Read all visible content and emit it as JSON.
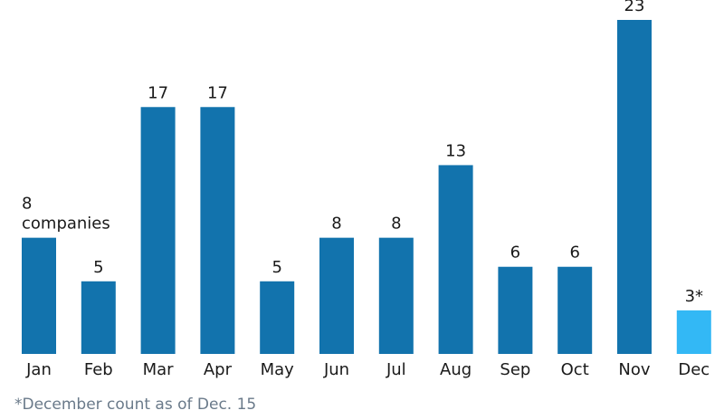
{
  "chart_data": {
    "type": "bar",
    "categories": [
      "Jan",
      "Feb",
      "Mar",
      "Apr",
      "May",
      "Jun",
      "Jul",
      "Aug",
      "Sep",
      "Oct",
      "Nov",
      "Dec"
    ],
    "values": [
      8,
      5,
      17,
      17,
      5,
      8,
      8,
      13,
      6,
      6,
      23,
      3
    ],
    "data_labels": [
      "8",
      "5",
      "17",
      "17",
      "5",
      "8",
      "8",
      "13",
      "6",
      "6",
      "23",
      "3*"
    ],
    "first_label_unit": "companies",
    "ylim": [
      0,
      23
    ],
    "colors": {
      "default": "#1273ad",
      "highlight": "#33b8f5",
      "highlight_index": 11
    },
    "footnote": "*December count as of Dec. 15"
  }
}
